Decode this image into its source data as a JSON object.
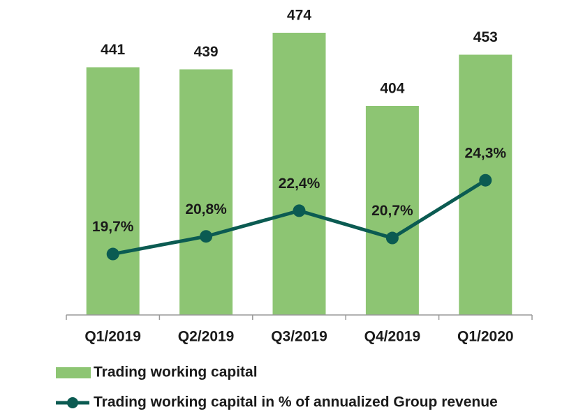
{
  "chart_data": {
    "type": "bar_line",
    "categories": [
      "Q1/2019",
      "Q2/2019",
      "Q3/2019",
      "Q4/2019",
      "Q1/2020"
    ],
    "series": [
      {
        "name": "Trading working capital",
        "type": "bar",
        "color": "#8dc573",
        "values": [
          441,
          439,
          474,
          404,
          453
        ]
      },
      {
        "name": "Trading working capital in % of annualized Group revenue",
        "type": "line",
        "axis": "y2",
        "color": "#0b5b52",
        "values": [
          19.7,
          20.8,
          22.4,
          20.7,
          24.3
        ],
        "value_labels": [
          "19,7%",
          "20,8%",
          "22,4%",
          "20,7%",
          "24,3%"
        ]
      }
    ],
    "ylim": [
      204,
      474
    ],
    "y2lim": [
      15.9,
      33.5
    ],
    "legend": "bottom-left"
  }
}
